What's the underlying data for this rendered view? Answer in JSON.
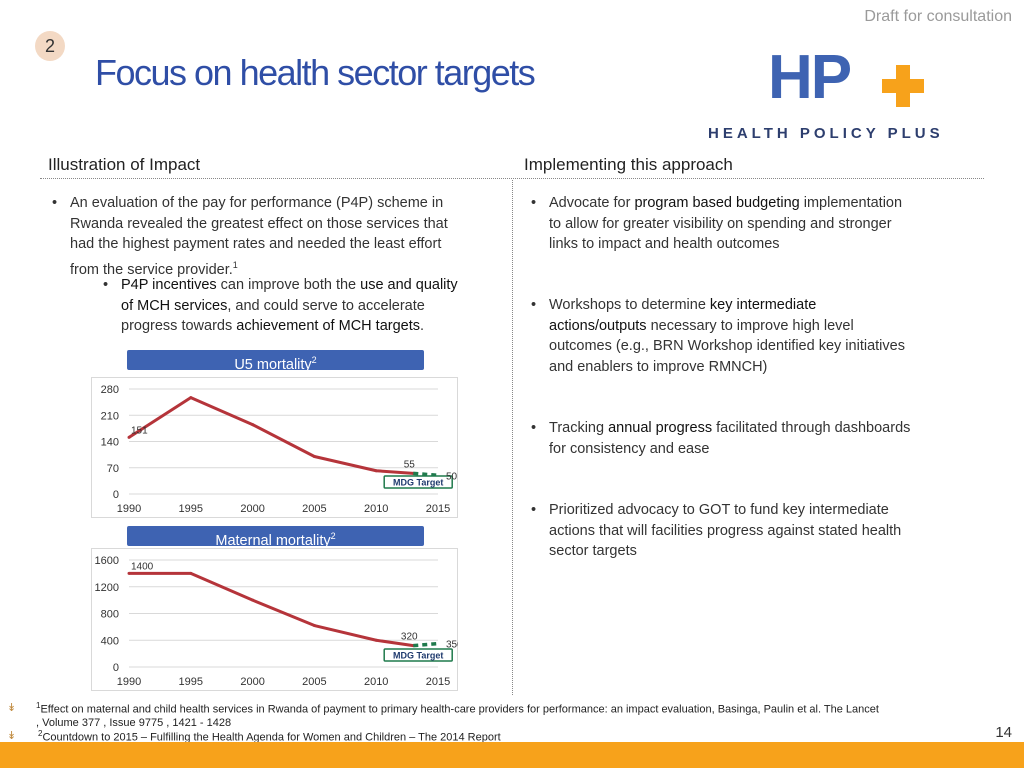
{
  "header": {
    "draft_label": "Draft for consultation",
    "slide_badge": "2",
    "title": "Focus on health sector targets"
  },
  "logo": {
    "letters": "HP",
    "subtitle": "HEALTH POLICY PLUS",
    "colors": {
      "letters": "#3e63b2",
      "plus": "#f7a21b",
      "subtitle": "#2d3e6e"
    }
  },
  "left": {
    "heading": "Illustration of Impact",
    "bullet1": {
      "line1": "An evaluation of the pay for performance (P4P) scheme in",
      "line2": "Rwanda revealed the greatest effect on those services that",
      "line3": "had the highest payment rates and needed the least effort",
      "line4": "from the service provider.",
      "sup": "1"
    },
    "sub_bullet": {
      "hl1": "P4P incentives",
      "t1": " can improve both the ",
      "hl2": "use and quality",
      "hl3": "of MCH services",
      "t2": ", and could serve to accelerate",
      "t3": "progress towards ",
      "hl4": "achievement of MCH targets",
      "t4": "."
    }
  },
  "right": {
    "heading": "Implementing this approach",
    "b1": {
      "t1": "Advocate for ",
      "hl": "program based budgeting",
      "t2": " implementation",
      "line2": "to allow for greater visibility on spending and stronger",
      "line3": "links to impact and health outcomes"
    },
    "b2": {
      "t1": "Workshops to determine ",
      "hl1": "key intermediate",
      "hl2": "actions/outputs",
      "t2": " necessary to improve high level",
      "line3": "outcomes (e.g., BRN Workshop identified key initiatives",
      "line4": "and enablers to improve RMNCH)"
    },
    "b3": {
      "t1": "Tracking ",
      "hl": "annual progress",
      "t2": " facilitated through dashboards",
      "line2": "for consistency and ease"
    },
    "b4": {
      "line1": "Prioritized advocacy to GOT to fund key intermediate",
      "line2": "actions that will facilities progress against stated health",
      "line3": "sector targets"
    }
  },
  "chart_data": [
    {
      "type": "line",
      "title": "U5 mortality",
      "title_sup": "2",
      "x": [
        1990,
        1995,
        2000,
        2005,
        2010,
        2013
      ],
      "series": [
        {
          "values": [
            151,
            257,
            185,
            100,
            62,
            55
          ],
          "color": "#b5343a"
        }
      ],
      "target": {
        "x": [
          2013,
          2015
        ],
        "values": [
          55,
          50
        ],
        "color": "#1f7a4c",
        "label": "MDG Target"
      },
      "data_labels": [
        {
          "x": 1990,
          "value": 151,
          "text": "151"
        },
        {
          "x": 2013,
          "value": 55,
          "text": "55"
        },
        {
          "x": 2015,
          "value": 50,
          "text": "50"
        }
      ],
      "xticks": [
        "1990",
        "1995",
        "2000",
        "2005",
        "2010",
        "2015"
      ],
      "yticks": [
        "0",
        "70",
        "140",
        "210",
        "280"
      ],
      "ylim": [
        0,
        280
      ],
      "xlim": [
        1990,
        2015
      ],
      "grid": true
    },
    {
      "type": "line",
      "title": "Maternal mortality",
      "title_sup": "2",
      "x": [
        1990,
        1995,
        2000,
        2005,
        2010,
        2013
      ],
      "series": [
        {
          "values": [
            1400,
            1400,
            1000,
            620,
            400,
            320
          ],
          "color": "#b5343a"
        }
      ],
      "target": {
        "x": [
          2013,
          2015
        ],
        "values": [
          320,
          350
        ],
        "color": "#1f7a4c",
        "label": "MDG Target"
      },
      "data_labels": [
        {
          "x": 1990,
          "value": 1400,
          "text": "1400"
        },
        {
          "x": 2013,
          "value": 320,
          "text": "320"
        },
        {
          "x": 2015,
          "value": 350,
          "text": "350"
        }
      ],
      "xticks": [
        "1990",
        "1995",
        "2000",
        "2005",
        "2010",
        "2015"
      ],
      "yticks": [
        "0",
        "400",
        "800",
        "1200",
        "1600"
      ],
      "ylim": [
        0,
        1600
      ],
      "xlim": [
        1990,
        2015
      ],
      "grid": true
    }
  ],
  "footnotes": {
    "f1_sup": "1",
    "f1_line1": "Effect on maternal and child health services in Rwanda of payment to primary health-care providers for performance: an impact evaluation, Basinga, Paulin et al. The Lancet",
    "f1_line2": ", Volume 377 , Issue 9775 , 1421 - 1428",
    "f2_sup": "2",
    "f2_text": "Countdown to 2015 – Fulfilling the Health Agenda for Women and Children – The 2014 Report",
    "arrow_glyph": "↡"
  },
  "page_number": "14",
  "colors": {
    "title": "#2f4ea6",
    "accent_orange": "#f7a21b",
    "chart_bar": "#3e63b2"
  }
}
